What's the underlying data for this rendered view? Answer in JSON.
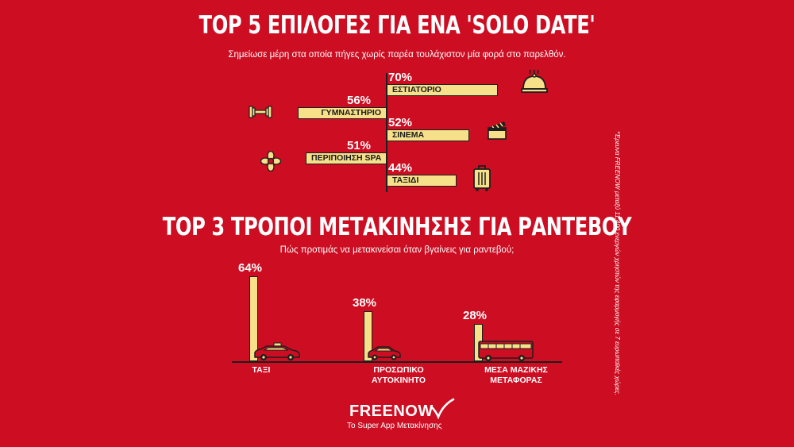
{
  "colors": {
    "background": "#cc0d22",
    "bar": "#f7e08a",
    "outline": "#1e1e1e"
  },
  "chart_data": [
    {
      "type": "bar",
      "orientation": "horizontal",
      "title": "TOP 5 ΕΠΙΛΟΓΕΣ ΓΙΑ ΕΝΑ 'SOLO DATE'",
      "subtitle": "Σημείωσε μέρη στα οποία πήγες χωρίς παρέα τουλάχιστον μία φορά στο παρελθόν.",
      "categories": [
        "ΕΣΤΙΑΤΟΡΙΟ",
        "ΓΥΜΝΑΣΤΗΡΙΟ",
        "ΣΙΝΕΜΑ",
        "ΠΕΡΙΠΟΙΗΣΗ SPA",
        "ΤΑΞΙΔΙ"
      ],
      "values": [
        70,
        56,
        52,
        51,
        44
      ],
      "value_labels": [
        "70%",
        "56%",
        "52%",
        "51%",
        "44%"
      ],
      "icons": [
        "cloche-icon",
        "dumbbell-icon",
        "clapperboard-icon",
        "flower-icon",
        "suitcase-icon"
      ],
      "unit": "%"
    },
    {
      "type": "bar",
      "orientation": "vertical",
      "title": "TOP 3 ΤΡΟΠΟΙ ΜΕΤΑΚΙΝΗΣΗΣ ΓΙΑ ΡΑΝΤΕΒΟΥ",
      "subtitle": "Πώς προτιμάς να μετακινείσαι όταν βγαίνεις για ραντεβού;",
      "categories": [
        "ΤΑΞΙ",
        "ΠΡΟΣΩΠΙΚΟ\nΑΥΤΟΚΙΝΗΤΟ",
        "ΜΕΣΑ ΜΑΖΙΚΗΣ\nΜΕΤΑΦΟΡΑΣ"
      ],
      "values": [
        64,
        38,
        28
      ],
      "value_labels": [
        "64%",
        "38%",
        "28%"
      ],
      "icons": [
        "taxi-icon",
        "car-icon",
        "bus-icon"
      ],
      "unit": "%"
    }
  ],
  "brand": {
    "name": "FREENOW",
    "tagline": "Το Super App Μετακίνησης"
  },
  "footnote": "*Έρευνα FREENOW μεταξύ 11.400 ενεργών χρηστών της εφαρμογής σε 7 ευρωπαϊκές χώρες."
}
